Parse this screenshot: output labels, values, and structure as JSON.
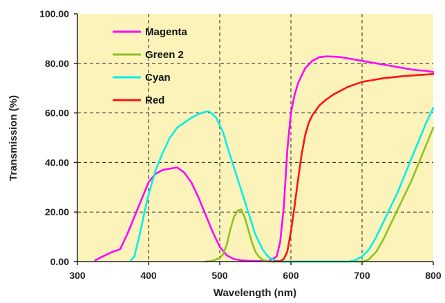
{
  "chart_data": {
    "type": "line",
    "title": "",
    "xlabel": "Wavelength (nm)",
    "ylabel": "Transmission (%)",
    "xlim": [
      300,
      800
    ],
    "ylim": [
      0,
      100
    ],
    "x_ticks": [
      "300",
      "400",
      "500",
      "600",
      "700",
      "800"
    ],
    "y_ticks": [
      "0.00",
      "20.00",
      "40.00",
      "60.00",
      "80.00",
      "100.00"
    ],
    "grid": "dashed",
    "legend_position": "top-left",
    "plot_background": "#fbf3b9",
    "series": [
      {
        "name": "Magenta",
        "color": "#ff00ff",
        "x": [
          325,
          335,
          350,
          360,
          370,
          380,
          390,
          400,
          410,
          420,
          430,
          440,
          450,
          460,
          470,
          480,
          490,
          500,
          510,
          520,
          530,
          540,
          550,
          560,
          570,
          580,
          585,
          590,
          595,
          600,
          605,
          610,
          615,
          620,
          630,
          640,
          650,
          660,
          670,
          680,
          690,
          700,
          710,
          720,
          730,
          740,
          750,
          760,
          770,
          780,
          790,
          800
        ],
        "y": [
          0.5,
          2,
          4,
          5,
          11,
          18,
          25,
          32,
          35.5,
          37,
          37.5,
          38,
          36,
          32,
          26,
          19,
          12,
          6,
          2.5,
          1,
          0.5,
          0.3,
          0.2,
          0.2,
          0.3,
          2,
          8,
          22,
          45,
          60,
          67,
          72,
          75,
          78,
          81,
          82.5,
          82.8,
          82.7,
          82.5,
          82,
          81.5,
          81,
          80.5,
          80,
          79.5,
          79,
          78.5,
          78,
          77.5,
          77.2,
          77,
          76.5
        ]
      },
      {
        "name": "Green 2",
        "color": "#8cc21f",
        "x": [
          480,
          490,
          500,
          505,
          510,
          515,
          520,
          525,
          530,
          535,
          540,
          545,
          550,
          555,
          560,
          565,
          570,
          700,
          705,
          710,
          720,
          730,
          740,
          750,
          760,
          770,
          780,
          790,
          800
        ],
        "y": [
          0,
          0.3,
          1.5,
          3,
          7,
          13,
          18,
          20.5,
          21,
          18,
          13,
          8,
          4,
          2,
          0.8,
          0.3,
          0,
          0,
          0.3,
          1,
          4,
          9,
          15,
          21,
          27,
          33,
          40,
          47,
          54
        ]
      },
      {
        "name": "Cyan",
        "color": "#00eeee",
        "x": [
          375,
          380,
          385,
          390,
          395,
          400,
          410,
          420,
          430,
          440,
          450,
          460,
          470,
          480,
          485,
          490,
          495,
          500,
          505,
          510,
          520,
          530,
          540,
          550,
          560,
          565,
          570,
          575,
          580,
          585,
          680,
          690,
          700,
          710,
          720,
          730,
          740,
          750,
          760,
          770,
          780,
          790,
          800
        ],
        "y": [
          0.5,
          2,
          8,
          14,
          21,
          27,
          37,
          44,
          50,
          54,
          56,
          58,
          59.5,
          60.5,
          60.5,
          59.5,
          58,
          55,
          52,
          47,
          38,
          29,
          20,
          11,
          5,
          3,
          1.5,
          0.8,
          0.3,
          0,
          0,
          0.5,
          2,
          5,
          10,
          16,
          22,
          28,
          35,
          42,
          49,
          56,
          62
        ]
      },
      {
        "name": "Red",
        "color": "#ff1010",
        "x": [
          575,
          585,
          590,
          595,
          600,
          605,
          610,
          615,
          620,
          625,
          630,
          640,
          650,
          660,
          670,
          680,
          690,
          700,
          710,
          720,
          730,
          740,
          750,
          760,
          770,
          780,
          790,
          800
        ],
        "y": [
          0,
          0.2,
          1,
          4,
          12,
          22,
          33,
          43,
          51,
          56,
          59,
          63,
          65.5,
          67.5,
          69,
          70.5,
          71.5,
          72.5,
          73,
          73.5,
          74,
          74.3,
          74.6,
          74.9,
          75.1,
          75.3,
          75.5,
          75.7
        ]
      }
    ]
  }
}
